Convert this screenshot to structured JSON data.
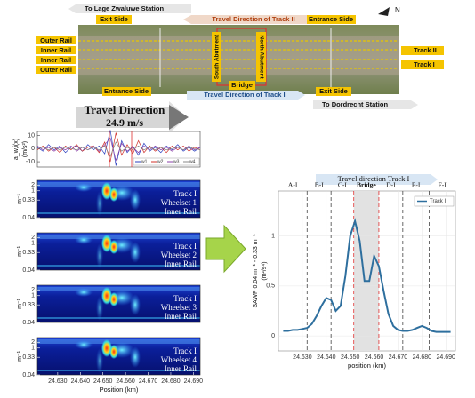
{
  "diagram": {
    "top_left_arrow": "To Lage Zwaluwe Station",
    "exit_side_top": "Exit Side",
    "track2_direction": "Travel Direction of Track II",
    "entrance_side_top": "Entrance Side",
    "compass": "N",
    "rail_labels": [
      "Outer Rail",
      "Inner Rail",
      "Inner Rail",
      "Outer Rail"
    ],
    "track_labels": [
      "Track II",
      "Track I"
    ],
    "south_abutment": "South Abutment",
    "north_abutment": "North Abutment",
    "bridge": "Bridge",
    "entrance_side_bottom": "Entrance Side",
    "track1_direction": "Travel Direction of Track I",
    "exit_side_bottom": "Exit Side",
    "bottom_right_arrow": "To Dordrecht Station",
    "travel_direction": "Travel Direction",
    "speed": "24.9 m/s"
  },
  "chart_data": [
    {
      "type": "signal",
      "y_label": "a_w,i(x)",
      "y_unit": "(m/s²)",
      "ylim": [
        -14,
        13
      ],
      "yticks": [
        10,
        0,
        -10
      ],
      "series": [
        {
          "name": "w1",
          "color": "#2b3fbf",
          "values": [
            1,
            -2,
            3,
            -1,
            2,
            -3,
            1,
            2,
            -2,
            3,
            -1,
            2,
            -4,
            14,
            -13,
            6,
            -3,
            2,
            -5,
            4,
            -2,
            1,
            -3,
            2,
            -1,
            3,
            -2,
            1,
            -2,
            1
          ]
        },
        {
          "name": "w2",
          "color": "#d0302a",
          "values": [
            -1,
            2,
            -2,
            1,
            -3,
            2,
            -1,
            3,
            -2,
            1,
            2,
            -3,
            5,
            -10,
            12,
            -5,
            3,
            -4,
            6,
            -3,
            2,
            -2,
            1,
            -3,
            2,
            -1,
            2,
            -2,
            1,
            -1
          ]
        },
        {
          "name": "w3",
          "color": "#8a3fa8",
          "values": [
            2,
            -1,
            1,
            -2,
            1,
            -1,
            2,
            -2,
            1,
            -1,
            2,
            -2,
            3,
            8,
            -9,
            4,
            -2,
            1,
            -3,
            2,
            -1,
            2,
            -1,
            1,
            -2,
            1,
            -1,
            2,
            -1,
            1
          ]
        },
        {
          "name": "w4",
          "color": "#888888",
          "values": [
            0,
            1,
            -1,
            1,
            -1,
            1,
            0,
            -1,
            1,
            -1,
            1,
            -1,
            2,
            -6,
            5,
            -2,
            1,
            -1,
            2,
            -1,
            1,
            -1,
            1,
            -1,
            0,
            1,
            -1,
            1,
            0,
            -1
          ]
        }
      ]
    },
    {
      "type": "heatmap",
      "labels": [
        "Track I",
        "Wheelset 1",
        "Inner Rail"
      ],
      "y_label": "m⁻¹",
      "log_y": true,
      "ylim": [
        0.04,
        3.5
      ],
      "yticks": [
        2,
        1,
        0.33,
        0.04
      ],
      "xlim": [
        24.621,
        24.693
      ]
    },
    {
      "type": "heatmap",
      "labels": [
        "Track I",
        "Wheelset 2",
        "Inner Rail"
      ],
      "y_label": "m⁻¹",
      "log_y": true,
      "ylim": [
        0.04,
        3.5
      ],
      "yticks": [
        2,
        1,
        0.33,
        0.04
      ],
      "xlim": [
        24.621,
        24.693
      ]
    },
    {
      "type": "heatmap",
      "labels": [
        "Track I",
        "Wheelset 3",
        "Inner Rail"
      ],
      "y_label": "m⁻¹",
      "log_y": true,
      "ylim": [
        0.04,
        3.5
      ],
      "yticks": [
        2,
        1,
        0.33,
        0.04
      ],
      "xlim": [
        24.621,
        24.693
      ]
    },
    {
      "type": "heatmap",
      "labels": [
        "Track I",
        "Wheelset 4",
        "Inner Rail"
      ],
      "y_label": "m⁻¹",
      "log_y": true,
      "ylim": [
        0.04,
        3.5
      ],
      "yticks": [
        2,
        1,
        0.33,
        0.04
      ],
      "xlim": [
        24.621,
        24.693
      ],
      "x_label": "Position (km)",
      "xticks": [
        {
          "value": 24.63,
          "label": "24.630"
        },
        {
          "value": 24.64,
          "label": "24.640"
        },
        {
          "value": 24.65,
          "label": "24.650"
        },
        {
          "value": 24.66,
          "label": "24.660"
        },
        {
          "value": 24.67,
          "label": "24.670"
        },
        {
          "value": 24.68,
          "label": "24.680"
        },
        {
          "value": 24.69,
          "label": "24.690"
        }
      ]
    },
    {
      "type": "line",
      "title": "Travel direction Track I",
      "zones": [
        "A-I",
        "B-I",
        "C-I",
        "Bridge",
        "D-I",
        "E-I",
        "F-I"
      ],
      "zone_boundaries": [
        24.632,
        24.642,
        24.6515,
        24.662,
        24.672,
        24.683
      ],
      "bridge_color": "#e03030",
      "x": [
        24.622,
        24.624,
        24.626,
        24.628,
        24.63,
        24.632,
        24.634,
        24.636,
        24.638,
        24.64,
        24.642,
        24.644,
        24.646,
        24.648,
        24.65,
        24.652,
        24.654,
        24.656,
        24.658,
        24.66,
        24.662,
        24.664,
        24.666,
        24.668,
        24.67,
        24.672,
        24.674,
        24.676,
        24.678,
        24.68,
        24.682,
        24.684,
        24.686,
        24.688,
        24.69,
        24.692
      ],
      "series": [
        {
          "name": "Track I",
          "color": "#2e6f9e",
          "values": [
            0.05,
            0.05,
            0.06,
            0.06,
            0.07,
            0.08,
            0.12,
            0.2,
            0.3,
            0.38,
            0.36,
            0.25,
            0.3,
            0.6,
            1.0,
            1.15,
            0.95,
            0.55,
            0.55,
            0.8,
            0.7,
            0.45,
            0.22,
            0.1,
            0.06,
            0.05,
            0.05,
            0.06,
            0.08,
            0.1,
            0.08,
            0.05,
            0.04,
            0.04,
            0.04,
            0.04
          ]
        }
      ],
      "xlim": [
        24.62,
        24.694
      ],
      "xticks": [
        {
          "value": 24.63,
          "label": "24.630"
        },
        {
          "value": 24.64,
          "label": "24.640"
        },
        {
          "value": 24.65,
          "label": "24.650"
        },
        {
          "value": 24.66,
          "label": "24.660"
        },
        {
          "value": 24.67,
          "label": "24.670"
        },
        {
          "value": 24.68,
          "label": "24.680"
        },
        {
          "value": 24.69,
          "label": "24.690"
        }
      ],
      "ylim": [
        -0.15,
        1.45
      ],
      "yticks": [
        0,
        0.5,
        1
      ],
      "grid": true,
      "y_label": "SAWP 0.04 m⁻¹ - 0.33 m⁻¹",
      "y_unit": "(m²/s⁴)",
      "x_label": "position (km)"
    }
  ]
}
